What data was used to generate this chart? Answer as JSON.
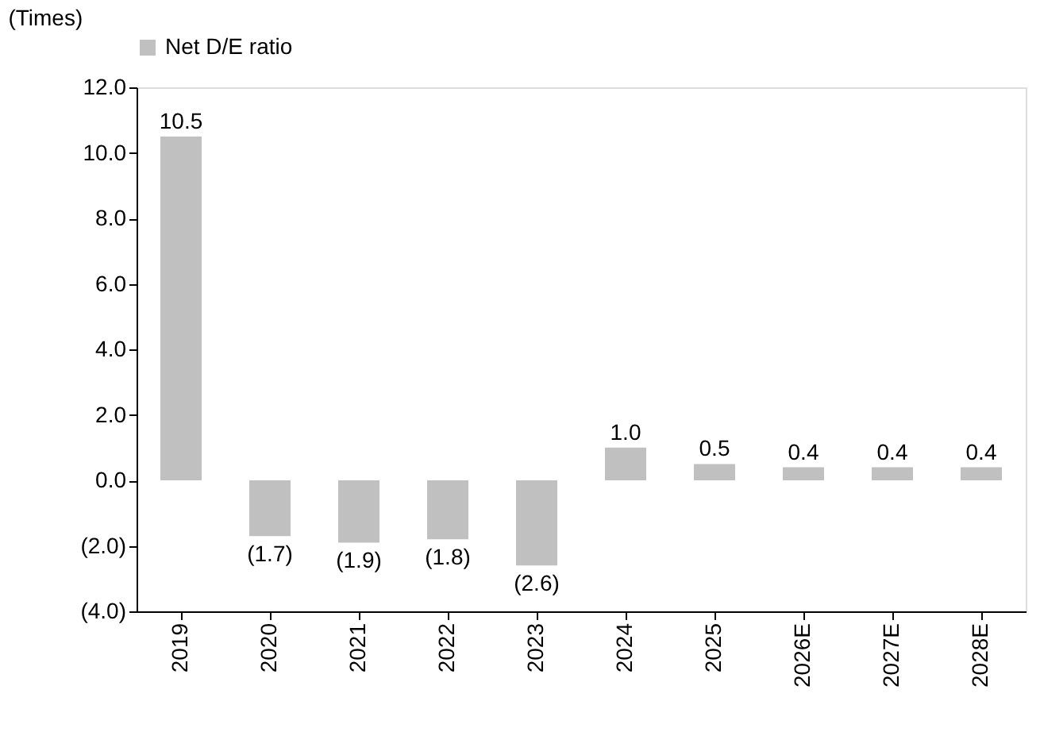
{
  "chart_data": {
    "type": "bar",
    "ylabel": "(Times)",
    "categories": [
      "2019",
      "2020",
      "2021",
      "2022",
      "2023",
      "2024",
      "2025",
      "2026E",
      "2027E",
      "2028E"
    ],
    "series": [
      {
        "name": "Net D/E ratio",
        "color": "#c0c0c0",
        "values": [
          10.5,
          -1.7,
          -1.9,
          -1.8,
          -2.6,
          1.0,
          0.5,
          0.4,
          0.4,
          0.4
        ],
        "value_labels": [
          "10.5",
          "(1.7)",
          "(1.9)",
          "(1.8)",
          "(2.6)",
          "1.0",
          "0.5",
          "0.4",
          "0.4",
          "0.4"
        ]
      }
    ],
    "ylim": [
      -4,
      12
    ],
    "yticks": [
      {
        "value": -4,
        "label": "(4.0)"
      },
      {
        "value": -2,
        "label": "(2.0)"
      },
      {
        "value": 0,
        "label": "0.0"
      },
      {
        "value": 2,
        "label": "2.0"
      },
      {
        "value": 4,
        "label": "4.0"
      },
      {
        "value": 6,
        "label": "6.0"
      },
      {
        "value": 8,
        "label": "8.0"
      },
      {
        "value": 10,
        "label": "10.0"
      },
      {
        "value": 12,
        "label": "12.0"
      }
    ],
    "grid": false,
    "legend": "top"
  }
}
